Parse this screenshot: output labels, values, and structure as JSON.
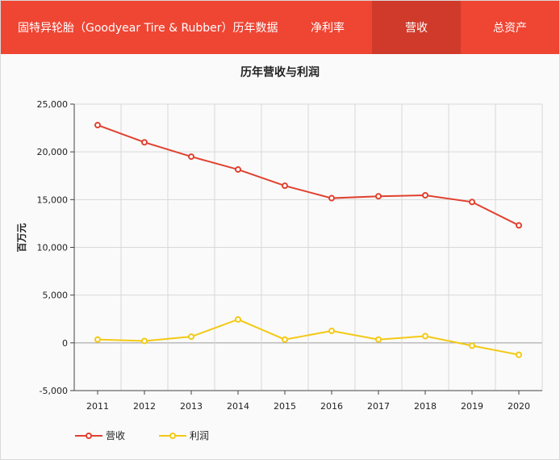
{
  "header": {
    "title": "固特异轮胎（Goodyear Tire & Rubber）历年数据",
    "tabs": [
      {
        "label": "净利率",
        "active": false
      },
      {
        "label": "营收",
        "active": true
      },
      {
        "label": "总资产",
        "active": false
      }
    ]
  },
  "colors": {
    "brand": "#ef4533",
    "active_tab": "#cf3a2b",
    "revenue": "#e0412f",
    "profit": "#f3c913"
  },
  "chart_data": {
    "type": "line",
    "title": "历年营收与利润",
    "ylabel": "百万元",
    "xlabel": "",
    "x": [
      "2011",
      "2012",
      "2013",
      "2014",
      "2015",
      "2016",
      "2017",
      "2018",
      "2019",
      "2020"
    ],
    "ylim": [
      -5000,
      25000
    ],
    "yticks": [
      "25,000",
      "20,000",
      "15,000",
      "10,000",
      "5,000",
      "0",
      "-5,000"
    ],
    "ytick_values": [
      25000,
      20000,
      15000,
      10000,
      5000,
      0,
      -5000
    ],
    "grid": true,
    "legend_position": "bottom-left",
    "series": [
      {
        "name": "营收",
        "color": "#e0412f",
        "values": [
          22800,
          21000,
          19500,
          18150,
          16450,
          15150,
          15350,
          15450,
          14750,
          12300
        ]
      },
      {
        "name": "利润",
        "color": "#f3c913",
        "values": [
          350,
          200,
          650,
          2450,
          350,
          1250,
          350,
          700,
          -300,
          -1250
        ]
      }
    ]
  }
}
